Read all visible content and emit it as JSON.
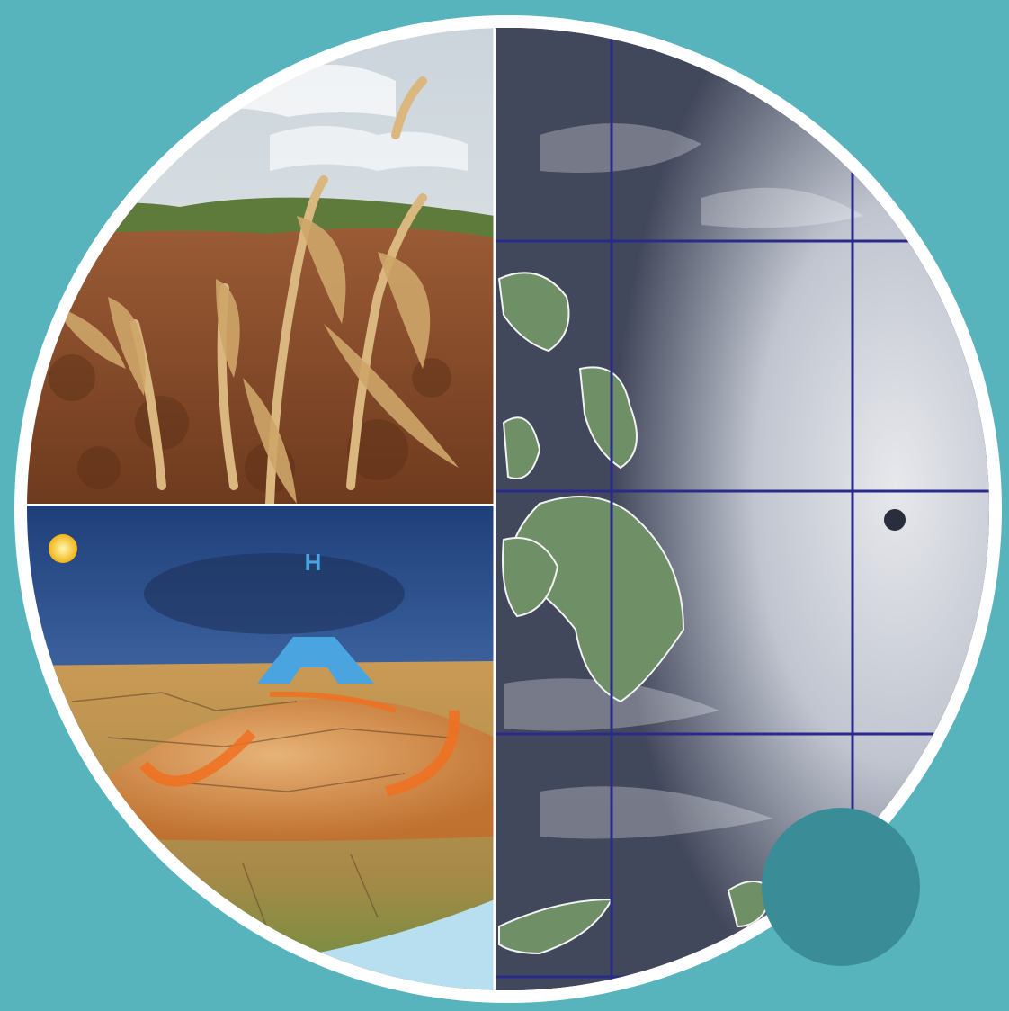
{
  "scene": {
    "background_color": "#57b3bc",
    "ring_color": "#ffffff",
    "accent_dot_color": "#3a8c96",
    "panels": {
      "drought": "drought-field-photo",
      "heat_dome": "heat-dome-diagram",
      "typhoon": "typhoon-satellite-image"
    }
  },
  "heat_dome": {
    "upper_label": "H",
    "dome_label": "H",
    "label_color": "#4aa4e0",
    "arrow_color": "#f07020"
  },
  "typhoon": {
    "grid_color": "#2a2a8a",
    "land_color": "#6f8f66",
    "cloud_color": "#e2e6ec"
  }
}
